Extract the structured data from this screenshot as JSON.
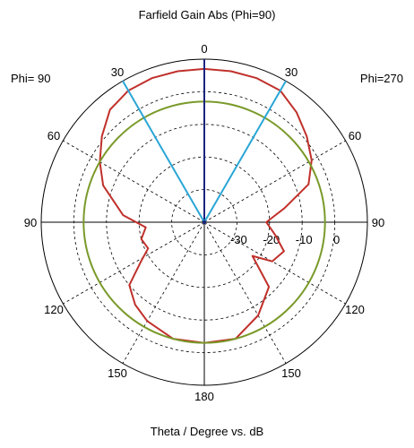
{
  "chart_data": {
    "type": "polar_line",
    "title": "Farfield Gain Abs (Phi=90)",
    "xlabel": "Theta / Degree vs. dB",
    "left_label": "Phi= 90",
    "right_label": "Phi=270",
    "theta_ticks": [
      {
        "angle": 0,
        "label": "0"
      },
      {
        "angle": 30,
        "label": "30"
      },
      {
        "angle": 60,
        "label": "60"
      },
      {
        "angle": 90,
        "label": "90"
      },
      {
        "angle": 120,
        "label": "120"
      },
      {
        "angle": 150,
        "label": "150"
      },
      {
        "angle": 180,
        "label": "180"
      },
      {
        "angle": 210,
        "label": "150"
      },
      {
        "angle": 240,
        "label": "120"
      },
      {
        "angle": 270,
        "label": "90"
      },
      {
        "angle": 300,
        "label": "60"
      },
      {
        "angle": 330,
        "label": "30"
      }
    ],
    "radial_ticks": [
      {
        "value": -30,
        "label": "-30"
      },
      {
        "value": -20,
        "label": "-20"
      },
      {
        "value": -10,
        "label": "-10"
      },
      {
        "value": 0,
        "label": "0"
      }
    ],
    "radial_range": [
      -40,
      10
    ],
    "grid_rings": [
      -30,
      -20,
      -10,
      0
    ],
    "series": [
      {
        "color": "#c0302b",
        "points": [
          {
            "theta": 0,
            "r": 7
          },
          {
            "theta": 10,
            "r": 7
          },
          {
            "theta": 20,
            "r": 7
          },
          {
            "theta": 30,
            "r": 6.6
          },
          {
            "theta": 40,
            "r": 4
          },
          {
            "theta": 50,
            "r": 1
          },
          {
            "theta": 60,
            "r": -2
          },
          {
            "theta": 70,
            "r": -6
          },
          {
            "theta": 80,
            "r": -15
          },
          {
            "theta": 90,
            "r": -21
          },
          {
            "theta": 100,
            "r": -18
          },
          {
            "theta": 110,
            "r": -14
          },
          {
            "theta": 120,
            "r": -16
          },
          {
            "theta": 125,
            "r": -22
          },
          {
            "theta": 135,
            "r": -12
          },
          {
            "theta": 150,
            "r": -7
          },
          {
            "theta": 165,
            "r": -3
          },
          {
            "theta": 180,
            "r": -3
          },
          {
            "theta": 195,
            "r": -3
          },
          {
            "theta": 210,
            "r": -5
          },
          {
            "theta": 220,
            "r": -7
          },
          {
            "theta": 230,
            "r": -10
          },
          {
            "theta": 238,
            "r": -17
          },
          {
            "theta": 245,
            "r": -21
          },
          {
            "theta": 255,
            "r": -20
          },
          {
            "theta": 265,
            "r": -22
          },
          {
            "theta": 275,
            "r": -15
          },
          {
            "theta": 290,
            "r": -7
          },
          {
            "theta": 300,
            "r": -3
          },
          {
            "theta": 310,
            "r": 1
          },
          {
            "theta": 320,
            "r": 5
          },
          {
            "theta": 330,
            "r": 6.6
          },
          {
            "theta": 340,
            "r": 7
          },
          {
            "theta": 350,
            "r": 7
          },
          {
            "theta": 360,
            "r": 7
          }
        ]
      },
      {
        "color": "#7a9a2a",
        "points": [
          {
            "theta": 0,
            "r": -3
          },
          {
            "theta": 90,
            "r": -3
          },
          {
            "theta": 180,
            "r": -3
          },
          {
            "theta": 270,
            "r": -3
          },
          {
            "theta": 360,
            "r": -3
          }
        ]
      }
    ],
    "radial_lines": [
      {
        "theta": 0,
        "color": "#1a237e"
      },
      {
        "theta": 30,
        "color": "#29a6d6"
      },
      {
        "theta": 330,
        "color": "#29a6d6"
      }
    ]
  }
}
